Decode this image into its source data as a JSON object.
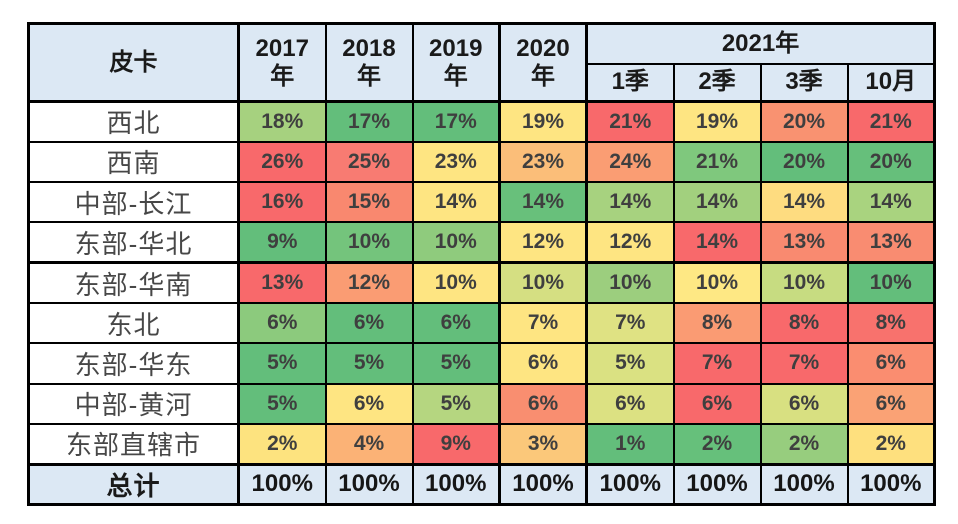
{
  "styles": {
    "header_bg": "#DCE8F4",
    "total_bg": "#DCE8F4",
    "border_color": "#000000",
    "page_bg": "#FFFFFF",
    "label_text": "#474747",
    "value_text": "#3F3F3F",
    "header_text": "#1A1A1A",
    "heat_red": "#F8696B",
    "heat_yellow": "#FEE582",
    "heat_green": "#63BE7B"
  },
  "table": {
    "corner_label": "皮卡",
    "year_columns": [
      "2017\n年",
      "2018\n年",
      "2019\n年",
      "2020\n年"
    ],
    "group_header": "2021年",
    "sub_columns": [
      "1季",
      "2季",
      "3季",
      "10月"
    ],
    "rows": [
      {
        "label": "西北",
        "group_end": false,
        "values": [
          "18%",
          "17%",
          "17%",
          "19%",
          "21%",
          "19%",
          "20%",
          "21%"
        ],
        "colors": [
          "#A6D17F",
          "#63BE7B",
          "#63BE7B",
          "#FEE582",
          "#F8696B",
          "#FEE582",
          "#F99271",
          "#F8696B"
        ]
      },
      {
        "label": "西南",
        "group_end": false,
        "values": [
          "26%",
          "25%",
          "23%",
          "23%",
          "24%",
          "21%",
          "20%",
          "20%"
        ],
        "colors": [
          "#F8696B",
          "#F87B72",
          "#FEE582",
          "#FBBE79",
          "#FA9D73",
          "#7FC87D",
          "#63BE7B",
          "#66BF7B"
        ]
      },
      {
        "label": "中部-长江",
        "group_end": false,
        "values": [
          "16%",
          "15%",
          "14%",
          "14%",
          "14%",
          "14%",
          "14%",
          "14%"
        ],
        "colors": [
          "#F8696B",
          "#F9886F",
          "#FEE582",
          "#68C07B",
          "#A7D27F",
          "#A2D07E",
          "#FEDC80",
          "#A9D37F"
        ]
      },
      {
        "label": "东部-华北",
        "group_end": true,
        "values": [
          "9%",
          "10%",
          "10%",
          "12%",
          "12%",
          "14%",
          "13%",
          "13%"
        ],
        "colors": [
          "#63BE7B",
          "#74C47C",
          "#8FCB7D",
          "#FEE582",
          "#FEE582",
          "#F8696B",
          "#F98A70",
          "#F98C71"
        ]
      },
      {
        "label": "东部-华南",
        "group_end": false,
        "values": [
          "13%",
          "12%",
          "10%",
          "10%",
          "10%",
          "10%",
          "10%",
          "10%"
        ],
        "colors": [
          "#F8696B",
          "#FA9C73",
          "#FEE582",
          "#D5DF82",
          "#9CCE7E",
          "#FEE884",
          "#C7DC81",
          "#63BE7B"
        ]
      },
      {
        "label": "东北",
        "group_end": false,
        "values": [
          "6%",
          "6%",
          "6%",
          "7%",
          "7%",
          "8%",
          "8%",
          "8%"
        ],
        "colors": [
          "#8CCA7D",
          "#63BE7B",
          "#63BE7B",
          "#FEE582",
          "#DFE283",
          "#FA9B73",
          "#F8696B",
          "#F8726D"
        ]
      },
      {
        "label": "东部-华东",
        "group_end": false,
        "values": [
          "5%",
          "5%",
          "5%",
          "6%",
          "5%",
          "7%",
          "7%",
          "6%"
        ],
        "colors": [
          "#63BE7B",
          "#63BE7B",
          "#63BE7B",
          "#FEE582",
          "#DAE182",
          "#F8696B",
          "#F8696B",
          "#FA8D70"
        ]
      },
      {
        "label": "中部-黄河",
        "group_end": false,
        "values": [
          "5%",
          "6%",
          "5%",
          "6%",
          "6%",
          "6%",
          "6%",
          "6%"
        ],
        "colors": [
          "#63BE7B",
          "#FEE582",
          "#B5D680",
          "#F98E70",
          "#DCE182",
          "#F8696B",
          "#D8E081",
          "#FAA275"
        ]
      },
      {
        "label": "东部直辖市",
        "group_end": false,
        "values": [
          "2%",
          "4%",
          "9%",
          "3%",
          "1%",
          "2%",
          "2%",
          "2%"
        ],
        "colors": [
          "#FDE37F",
          "#FBB276",
          "#F8696B",
          "#FBC87A",
          "#63BE7B",
          "#66C07B",
          "#97CD7E",
          "#FEE07E"
        ]
      }
    ],
    "total_row": {
      "label": "总计",
      "values": [
        "100%",
        "100%",
        "100%",
        "100%",
        "100%",
        "100%",
        "100%",
        "100%"
      ]
    }
  },
  "chart_data": {
    "type": "table",
    "title": "皮卡",
    "columns": [
      "2017年",
      "2018年",
      "2019年",
      "2020年",
      "2021年1季",
      "2021年2季",
      "2021年3季",
      "2021年10月"
    ],
    "row_labels": [
      "西北",
      "西南",
      "中部-长江",
      "东部-华北",
      "东部-华南",
      "东北",
      "东部-华东",
      "中部-黄河",
      "东部直辖市",
      "总计"
    ],
    "values_pct": [
      [
        18,
        17,
        17,
        19,
        21,
        19,
        20,
        21
      ],
      [
        26,
        25,
        23,
        23,
        24,
        21,
        20,
        20
      ],
      [
        16,
        15,
        14,
        14,
        14,
        14,
        14,
        14
      ],
      [
        9,
        10,
        10,
        12,
        12,
        14,
        13,
        13
      ],
      [
        13,
        12,
        10,
        10,
        10,
        10,
        10,
        10
      ],
      [
        6,
        6,
        6,
        7,
        7,
        8,
        8,
        8
      ],
      [
        5,
        5,
        5,
        6,
        5,
        7,
        7,
        6
      ],
      [
        5,
        6,
        5,
        6,
        6,
        6,
        6,
        6
      ],
      [
        2,
        4,
        9,
        3,
        1,
        2,
        2,
        2
      ],
      [
        100,
        100,
        100,
        100,
        100,
        100,
        100,
        100
      ]
    ],
    "notes": "cell background heat scale red #F8696B → yellow #FEE582 → green #63BE7B per row"
  }
}
